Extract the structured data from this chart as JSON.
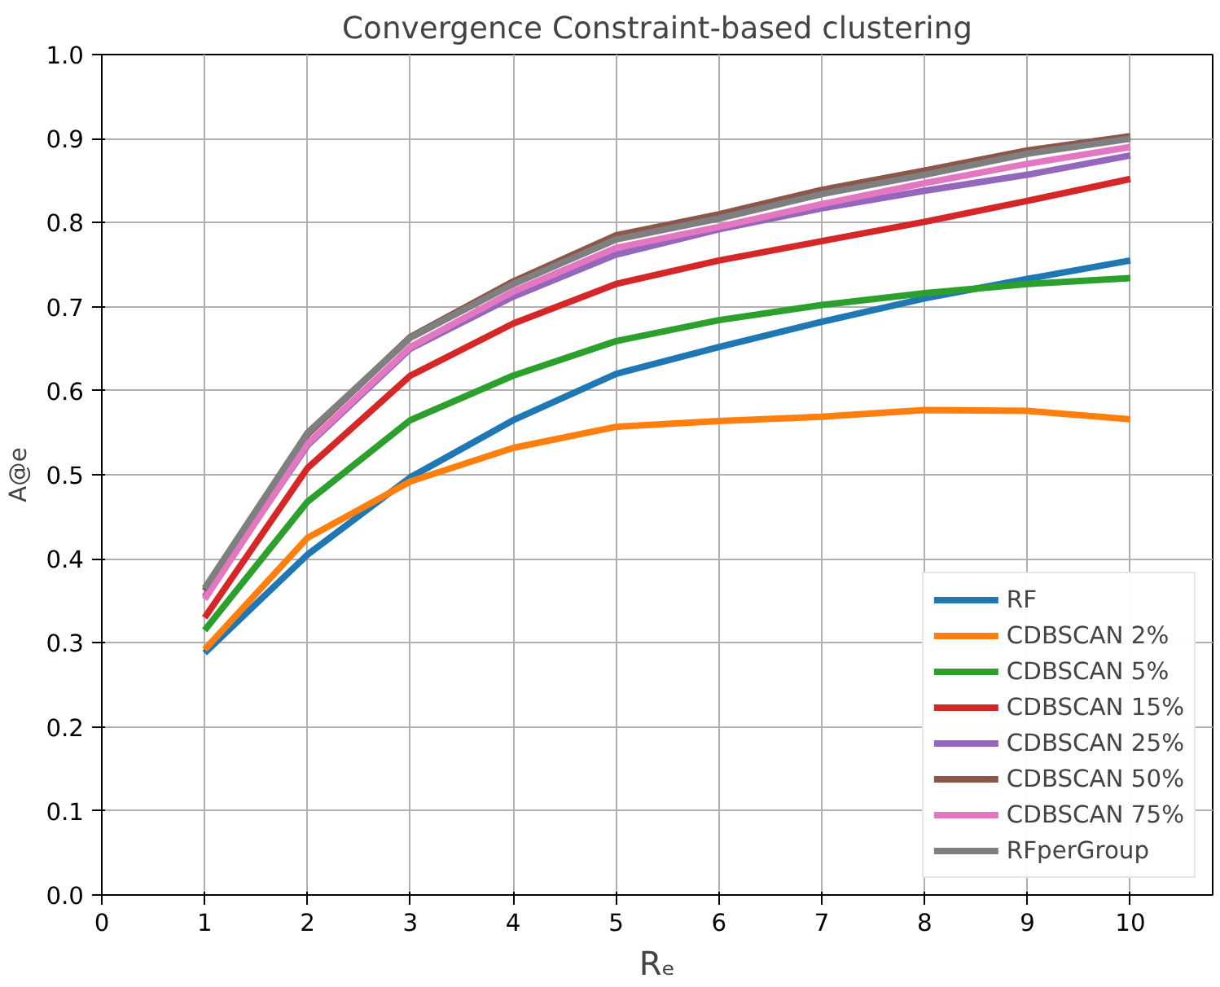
{
  "chart_data": {
    "type": "line",
    "title": "Convergence Constraint-based clustering",
    "xlabel": "Rₑ",
    "ylabel": "A@e",
    "x": [
      1,
      2,
      3,
      4,
      5,
      6,
      7,
      8,
      9,
      10
    ],
    "xlim": [
      0,
      10.8
    ],
    "xticks": [
      0,
      1,
      2,
      3,
      4,
      5,
      6,
      7,
      8,
      9,
      10
    ],
    "ylim": [
      0,
      1
    ],
    "yticks": [
      {
        "value": 0,
        "label": "0.0"
      },
      0.1,
      0.2,
      0.3,
      0.4,
      0.5,
      0.6,
      0.7,
      0.8,
      0.9,
      {
        "value": 1,
        "label": "1.0"
      }
    ],
    "grid": true,
    "legend": "bottom right",
    "series": [
      {
        "name": "RF",
        "color": "#1f77b4",
        "values": [
          0.288,
          0.405,
          0.497,
          0.565,
          0.62,
          0.652,
          0.682,
          0.71,
          0.733,
          0.755
        ]
      },
      {
        "name": "CDBSCAN 2%",
        "color": "#ff7f0e",
        "values": [
          0.292,
          0.425,
          0.492,
          0.532,
          0.557,
          0.564,
          0.569,
          0.577,
          0.576,
          0.566
        ]
      },
      {
        "name": "CDBSCAN 5%",
        "color": "#2ca02c",
        "values": [
          0.315,
          0.468,
          0.565,
          0.618,
          0.659,
          0.684,
          0.702,
          0.716,
          0.727,
          0.734
        ]
      },
      {
        "name": "CDBSCAN 15%",
        "color": "#d62728",
        "values": [
          0.33,
          0.508,
          0.618,
          0.68,
          0.727,
          0.755,
          0.778,
          0.801,
          0.826,
          0.852
        ]
      },
      {
        "name": "CDBSCAN 25%",
        "color": "#9467bd",
        "values": [
          0.355,
          0.535,
          0.65,
          0.712,
          0.762,
          0.792,
          0.817,
          0.838,
          0.857,
          0.88
        ]
      },
      {
        "name": "CDBSCAN 50%",
        "color": "#8c564b",
        "values": [
          0.362,
          0.548,
          0.664,
          0.73,
          0.785,
          0.81,
          0.839,
          0.862,
          0.886,
          0.903
        ]
      },
      {
        "name": "CDBSCAN 75%",
        "color": "#e377c2",
        "values": [
          0.352,
          0.537,
          0.652,
          0.718,
          0.77,
          0.795,
          0.822,
          0.847,
          0.87,
          0.89
        ]
      },
      {
        "name": "RFperGroup",
        "color": "#7f7f7f",
        "values": [
          0.365,
          0.55,
          0.663,
          0.727,
          0.78,
          0.805,
          0.834,
          0.857,
          0.882,
          0.9
        ]
      }
    ]
  }
}
